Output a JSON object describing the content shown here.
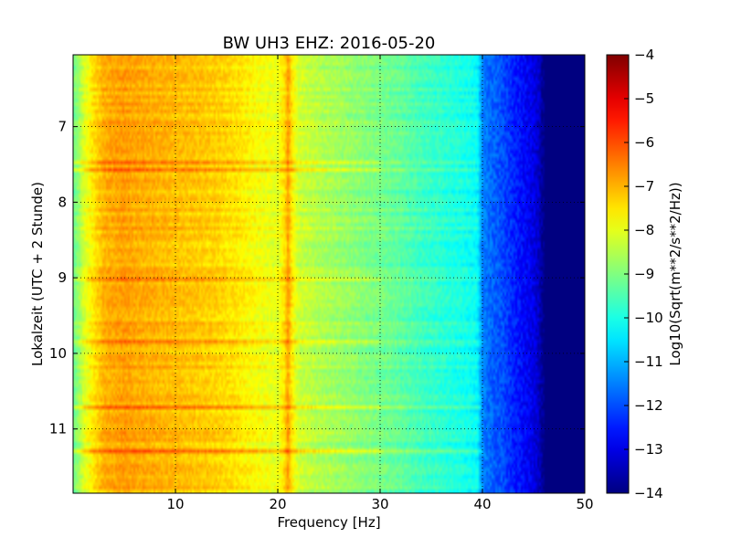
{
  "chart_data": {
    "type": "heatmap",
    "title": "BW UH3 EHZ: 2016-05-20",
    "xlabel": "Frequency [Hz]",
    "ylabel": "Lokalzeit (UTC + 2 Stunde)",
    "xlim": [
      0,
      50
    ],
    "ylim": [
      6.05,
      11.85
    ],
    "y_inverted": true,
    "x_ticks": [
      10,
      20,
      30,
      40,
      50
    ],
    "y_ticks": [
      7,
      8,
      9,
      10,
      11
    ],
    "grid": true,
    "colormap": "jet",
    "colorbar": {
      "label": "Log10(Sqrt(m**2/s**2/Hz))",
      "range": [
        -14,
        -4
      ],
      "ticks": [
        -4,
        -5,
        -6,
        -7,
        -8,
        -9,
        -10,
        -11,
        -12,
        -13,
        -14
      ]
    },
    "profile": {
      "freq_hz": [
        0,
        0.5,
        1,
        2,
        3,
        4,
        5,
        6,
        8,
        10,
        12,
        14,
        16,
        18,
        20,
        20.7,
        21,
        21.4,
        22,
        24,
        26,
        28,
        30,
        32,
        34,
        36,
        38,
        39.5,
        40,
        41,
        42,
        43,
        44,
        45,
        45.5,
        46,
        47,
        50
      ],
      "log10_psd": [
        -9.2,
        -8.8,
        -8.2,
        -7.5,
        -7.0,
        -6.9,
        -6.8,
        -6.9,
        -7.0,
        -7.1,
        -7.2,
        -7.3,
        -7.5,
        -7.8,
        -8.0,
        -7.4,
        -6.8,
        -7.6,
        -8.2,
        -8.5,
        -8.7,
        -8.9,
        -9.1,
        -9.3,
        -9.6,
        -9.8,
        -10.0,
        -10.2,
        -11.5,
        -11.8,
        -12.0,
        -12.4,
        -12.7,
        -13.0,
        -13.3,
        -14,
        -14,
        -14
      ]
    }
  }
}
